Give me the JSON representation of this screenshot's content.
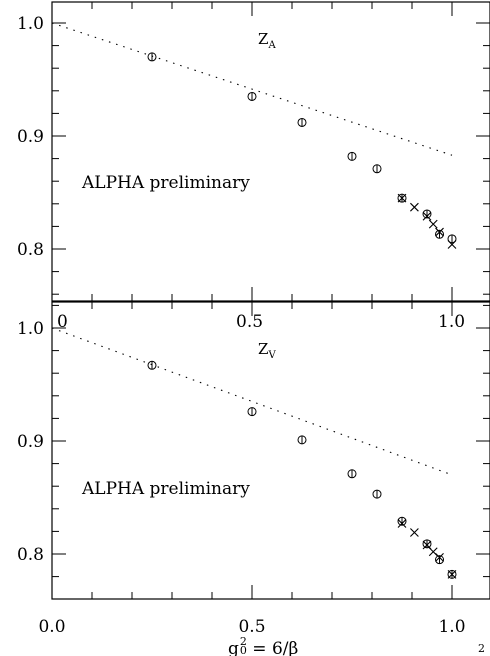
{
  "chart_data": [
    {
      "type": "scatter",
      "title": "Z_A",
      "title_main": "Z",
      "title_sub": "A",
      "annotation": "ALPHA preliminary",
      "xlim": [
        0.0,
        1.03
      ],
      "ylim": [
        0.76,
        1.02
      ],
      "y_ticks": [
        0.8,
        0.9,
        1.0
      ],
      "y_tick_labels": [
        "0.8",
        "0.9",
        "1.0"
      ],
      "x_ticks": [
        0.0,
        0.5,
        1.0
      ],
      "x_tick_labels": [
        "0",
        "0.5",
        "1.0"
      ],
      "series": [
        {
          "marker": "circle",
          "x": [
            0.25,
            0.5,
            0.625,
            0.75,
            0.8125,
            0.875,
            0.9375,
            0.9688,
            1.0
          ],
          "y": [
            0.97,
            0.935,
            0.912,
            0.882,
            0.871,
            0.845,
            0.831,
            0.813,
            0.809
          ]
        },
        {
          "marker": "cross",
          "x": [
            0.875,
            0.906,
            0.9375,
            0.9531,
            0.9688,
            1.0
          ],
          "y": [
            0.845,
            0.837,
            0.829,
            0.822,
            0.815,
            0.804
          ]
        },
        {
          "style": "dotted-line",
          "x": [
            0.0,
            1.0
          ],
          "y": [
            1.0,
            0.883
          ]
        }
      ]
    },
    {
      "type": "scatter",
      "title": "Z_V",
      "title_main": "Z",
      "title_sub": "V",
      "annotation": "ALPHA preliminary",
      "xlim": [
        0.0,
        1.03
      ],
      "ylim": [
        0.76,
        1.02
      ],
      "y_ticks": [
        0.8,
        0.9,
        1.0
      ],
      "y_tick_labels": [
        "0.8",
        "0.9",
        "1.0"
      ],
      "x_ticks": [
        0.0,
        0.5,
        1.0
      ],
      "x_tick_labels": [
        "0.0",
        "0.5",
        "1.0"
      ],
      "xlabel": "g0² = 6/β",
      "series": [
        {
          "marker": "circle",
          "x": [
            0.25,
            0.5,
            0.625,
            0.75,
            0.8125,
            0.875,
            0.9375,
            0.9688,
            1.0
          ],
          "y": [
            0.967,
            0.926,
            0.901,
            0.871,
            0.853,
            0.829,
            0.809,
            0.795,
            0.782
          ]
        },
        {
          "marker": "cross",
          "x": [
            0.875,
            0.906,
            0.9375,
            0.9531,
            0.9688,
            1.0
          ],
          "y": [
            0.827,
            0.819,
            0.808,
            0.802,
            0.797,
            0.782
          ]
        },
        {
          "style": "dotted-line",
          "x": [
            0.0,
            1.0
          ],
          "y": [
            1.0,
            0.87
          ]
        }
      ]
    }
  ],
  "xlabel_parts": {
    "g": "g",
    "sub": "0",
    "sup": "2",
    "rest": " = 6/β"
  },
  "corner_mark": "2"
}
